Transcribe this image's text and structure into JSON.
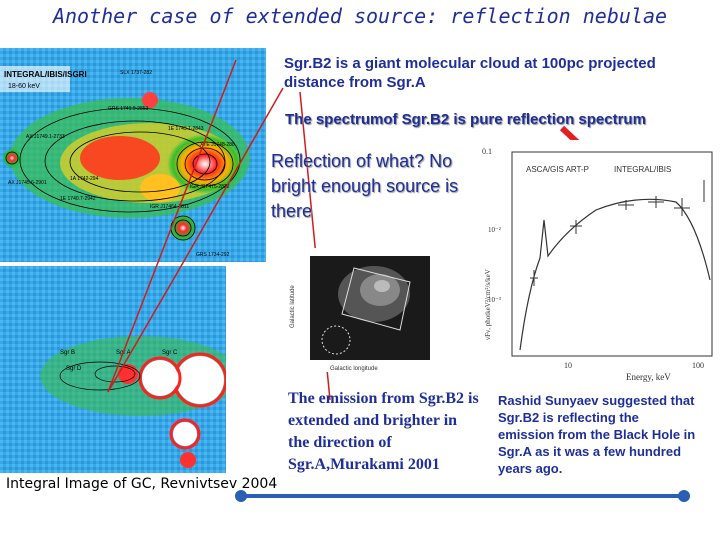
{
  "title": "Another case of extended source: reflection nebulae",
  "points": {
    "p1": "Sgr.B2 is a giant molecular cloud at 100pc projected distance from Sgr.A",
    "p2": "The spectrumof Sgr.B2 is pure reflection spectrum",
    "p3": "Reflection of what? No bright enough source is there"
  },
  "map_top": {
    "label1": "INTEGRAL/IBIS/ISGRI",
    "label2": "18-60 keV",
    "sources": [
      "SLX 1737-282",
      "GRS 1741.9-2853",
      "1E 1743.1-2843",
      "1A 1742-294",
      "AX J1745.6-2901",
      "1E 1740.7-2942",
      "AX J1749.1-2733",
      "XTE J1748-288",
      "IGR J17475-2822",
      "IGR J17464-2811",
      "GRS 1734-292"
    ]
  },
  "map_bottom": {
    "labels": [
      "Sgr B",
      "Sgr A",
      "Sgr C",
      "Sgr D"
    ]
  },
  "inset": {
    "xlabel": "Galactic longitude",
    "ylabel": "Galactic latitude"
  },
  "spectrum": {
    "ylabel": "νFν, photkeV²/cm²/s/keV",
    "xlabel": "Energy, keV",
    "left_label": "ASCA/GIS  ART-P",
    "right_label": "INTEGRAL/IBIS",
    "ytick_top": "0.1",
    "ytick_mid": "10⁻²",
    "ytick_low": "10⁻³",
    "xtick_10": "10",
    "xtick_100": "100"
  },
  "emission_text": "The emission from Sgr.B2 is extended and brighter in the direction of Sgr.A,Murakami 2001",
  "sunyaev_text": "Rashid Sunyaev suggested that Sgr.B2 is reflecting the emission from the Black Hole in Sgr.A as it was a few hundred years ago.",
  "caption": "Integral Image of GC, Revnivtsev 2004",
  "colors": {
    "title": "#1f2f9a",
    "arrow": "#e02020",
    "slider": "#2b5fb4"
  }
}
